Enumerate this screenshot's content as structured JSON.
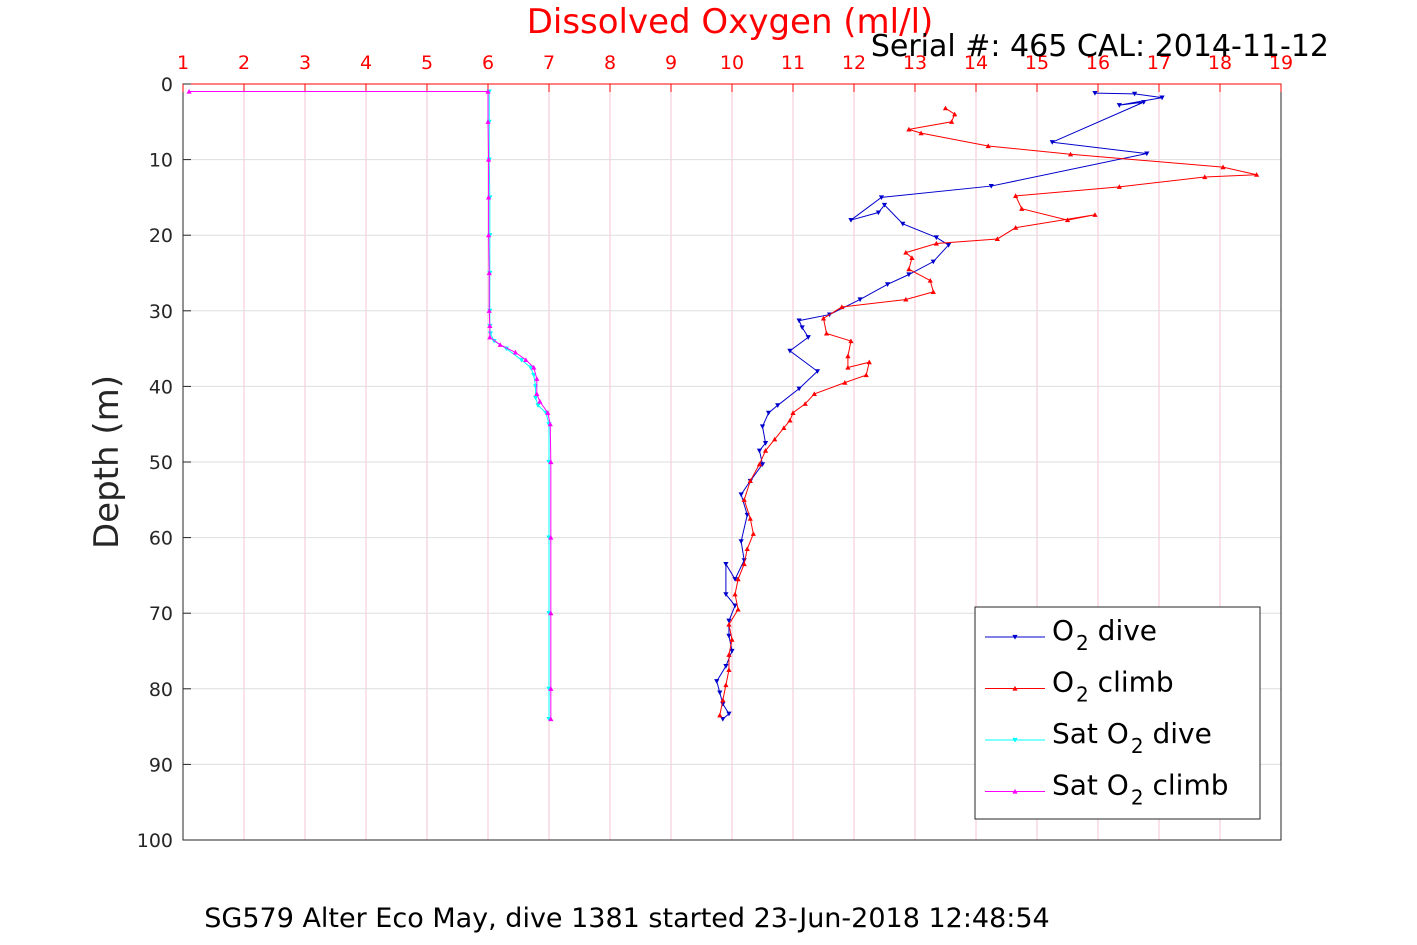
{
  "title": "Dissolved Oxygen (ml/l)",
  "serial_info": "Serial #: 465  CAL: 2014-11-12",
  "caption": "SG579 Alter Eco May, dive 1381 started 23-Jun-2018 12:48:54",
  "chart_data": {
    "type": "line",
    "xlabel": "Dissolved Oxygen (ml/l)",
    "ylabel": "Depth (m)",
    "xlim": [
      1,
      19
    ],
    "ylim": [
      0,
      100
    ],
    "y_reversed": true,
    "x_axis_position": "top",
    "xticks": [
      1,
      2,
      3,
      4,
      5,
      6,
      7,
      8,
      9,
      10,
      11,
      12,
      13,
      14,
      15,
      16,
      17,
      18,
      19
    ],
    "yticks": [
      0,
      10,
      20,
      30,
      40,
      50,
      60,
      70,
      80,
      90,
      100
    ],
    "grid": true,
    "legend_position": "bottom-right",
    "series": [
      {
        "name": "O2 dive",
        "legend_prefix": "O",
        "legend_sub": "2",
        "legend_suffix": " dive",
        "color": "#0000cc",
        "marker": "triangle-down",
        "x": [
          15.95,
          16.6,
          17.05,
          16.35,
          16.75,
          15.25,
          16.8,
          14.25,
          12.45,
          11.95,
          12.4,
          12.5,
          12.8,
          13.35,
          13.55,
          13.3,
          12.9,
          12.55,
          12.1,
          11.6,
          11.1,
          11.15,
          11.25,
          10.95,
          11.4,
          11.1,
          10.75,
          10.6,
          10.5,
          10.55,
          10.45,
          10.5,
          10.3,
          10.15,
          10.25,
          10.15,
          10.2,
          10.05,
          9.9,
          9.9,
          10.05,
          9.95,
          9.95,
          10.0,
          9.9,
          9.75,
          9.8,
          9.85,
          9.95,
          9.85
        ],
        "y": [
          1.2,
          1.3,
          1.8,
          2.8,
          2.4,
          7.7,
          9.2,
          13.5,
          15.0,
          18.0,
          17.0,
          16.0,
          18.5,
          20.3,
          21.3,
          23.5,
          25.2,
          26.5,
          28.5,
          30.5,
          31.3,
          32.2,
          33.5,
          35.3,
          38.0,
          40.3,
          42.5,
          43.5,
          45.3,
          47.5,
          48.5,
          50.3,
          52.5,
          54.3,
          57.0,
          60.5,
          63.0,
          65.5,
          63.5,
          67.5,
          69.0,
          71.0,
          73.0,
          75.0,
          77.0,
          79.0,
          80.5,
          82.0,
          83.3,
          84.0
        ]
      },
      {
        "name": "O2 climb",
        "legend_prefix": "O",
        "legend_sub": "2",
        "legend_suffix": " climb",
        "color": "#ff0000",
        "marker": "triangle-up",
        "x": [
          13.5,
          13.65,
          13.6,
          12.9,
          13.1,
          14.2,
          15.55,
          18.05,
          18.6,
          17.75,
          16.35,
          14.65,
          14.75,
          15.5,
          15.95,
          14.65,
          14.35,
          13.35,
          12.85,
          12.95,
          12.9,
          13.25,
          13.3,
          12.85,
          11.8,
          11.5,
          11.55,
          11.95,
          11.9,
          11.9,
          12.25,
          12.2,
          11.85,
          11.35,
          11.2,
          11.0,
          10.95,
          10.85,
          10.7,
          10.55,
          10.45,
          10.3,
          10.2,
          10.3,
          10.35,
          10.25,
          10.2,
          10.1,
          10.05,
          10.1,
          9.95,
          10.0,
          9.95,
          9.95,
          9.9,
          9.85,
          9.8
        ],
        "y": [
          3.2,
          4.0,
          5.0,
          6.0,
          6.5,
          8.2,
          9.3,
          11.0,
          12.0,
          12.3,
          13.6,
          14.8,
          16.5,
          18.0,
          17.3,
          19.0,
          20.5,
          21.1,
          22.3,
          23.0,
          24.5,
          26.0,
          27.5,
          28.5,
          29.5,
          31.0,
          33.0,
          34.0,
          36.0,
          37.5,
          36.8,
          38.5,
          39.5,
          41.0,
          42.3,
          43.5,
          44.5,
          45.5,
          47.0,
          48.5,
          50.3,
          52.5,
          55.0,
          57.5,
          59.5,
          61.5,
          63.5,
          65.5,
          67.5,
          69.5,
          71.5,
          73.5,
          75.5,
          77.5,
          79.5,
          81.5,
          83.5
        ]
      },
      {
        "name": "Sat O2 dive",
        "legend_prefix": "Sat O",
        "legend_sub": "2",
        "legend_suffix": " dive",
        "color": "#00ffff",
        "marker": "triangle-down",
        "x": [
          6.02,
          6.02,
          6.02,
          6.03,
          6.03,
          6.03,
          6.03,
          6.03,
          6.04,
          6.1,
          6.3,
          6.55,
          6.7,
          6.75,
          6.78,
          6.78,
          6.82,
          6.95,
          7.0,
          7.0,
          7.0,
          7.0,
          7.0,
          7.0
        ],
        "y": [
          1.0,
          5.0,
          10.0,
          15.0,
          20.0,
          25.0,
          30.0,
          32.0,
          33.0,
          34.0,
          35.0,
          36.5,
          37.5,
          38.5,
          40.0,
          41.5,
          42.5,
          43.5,
          45.0,
          50.0,
          60.0,
          70.0,
          80.0,
          84.0
        ]
      },
      {
        "name": "Sat O2 climb",
        "legend_prefix": "Sat O",
        "legend_sub": "2",
        "legend_suffix": " climb",
        "color": "#ff00ff",
        "marker": "triangle-up",
        "x": [
          1.1,
          6.0,
          6.0,
          6.01,
          6.01,
          6.01,
          6.02,
          6.02,
          6.03,
          6.03,
          6.2,
          6.45,
          6.62,
          6.75,
          6.8,
          6.8,
          6.85,
          6.98,
          7.02,
          7.03,
          7.03,
          7.03,
          7.03,
          7.03
        ],
        "y": [
          1.0,
          1.0,
          5.0,
          10.0,
          15.0,
          20.0,
          25.0,
          30.0,
          32.0,
          33.5,
          34.5,
          35.5,
          36.5,
          37.5,
          39.0,
          41.0,
          42.0,
          43.5,
          45.0,
          50.0,
          60.0,
          70.0,
          80.0,
          84.0
        ]
      }
    ]
  }
}
